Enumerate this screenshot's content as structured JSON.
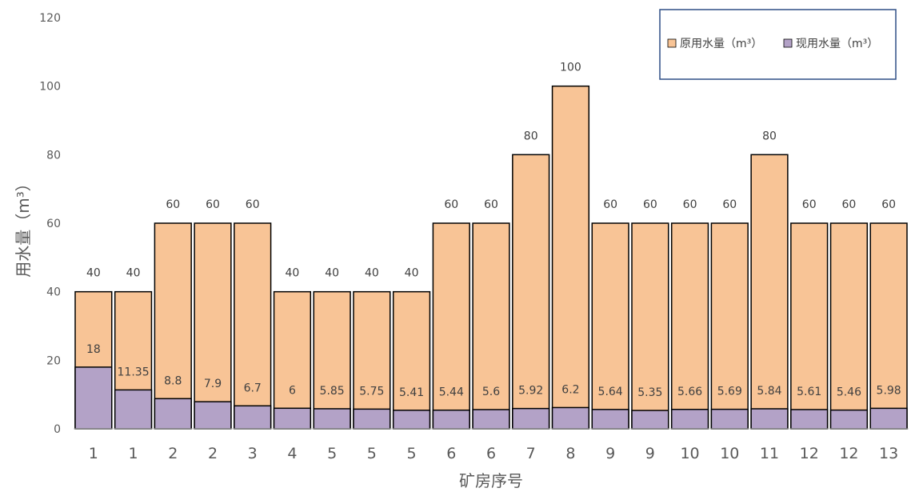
{
  "chart_data": {
    "type": "bar",
    "stacking": "overlap",
    "categories": [
      "1",
      "1",
      "2",
      "2",
      "3",
      "4",
      "5",
      "5",
      "5",
      "6",
      "6",
      "7",
      "8",
      "9",
      "9",
      "10",
      "10",
      "11",
      "12",
      "12",
      "13"
    ],
    "series": [
      {
        "name": "原用水量（m³）",
        "color": "#f8c496",
        "values": [
          40,
          40,
          60,
          60,
          60,
          40,
          40,
          40,
          40,
          60,
          60,
          80,
          100,
          60,
          60,
          60,
          60,
          80,
          60,
          60,
          60
        ]
      },
      {
        "name": "现用水量（m³）",
        "color": "#b3a2c7",
        "values": [
          18,
          11.35,
          8.8,
          7.9,
          6.7,
          6,
          5.85,
          5.75,
          5.41,
          5.44,
          5.6,
          5.92,
          6.2,
          5.64,
          5.35,
          5.66,
          5.69,
          5.84,
          5.61,
          5.46,
          5.98
        ]
      }
    ],
    "series_labels": [
      [
        "40",
        "40",
        "60",
        "60",
        "60",
        "40",
        "40",
        "40",
        "40",
        "60",
        "60",
        "80",
        "100",
        "60",
        "60",
        "60",
        "60",
        "80",
        "60",
        "60",
        "60"
      ],
      [
        "18",
        "11.35",
        "8.8",
        "7.9",
        "6.7",
        "6",
        "5.85",
        "5.75",
        "5.41",
        "5.44",
        "5.6",
        "5.92",
        "6.2",
        "5.64",
        "5.35",
        "5.66",
        "5.69",
        "5.84",
        "5.61",
        "5.46",
        "5.98"
      ]
    ],
    "yticks": [
      "0",
      "20",
      "40",
      "60",
      "80",
      "100",
      "120"
    ],
    "ylim": [
      0,
      120
    ],
    "xlabel": "矿房序号",
    "ylabel": "用水量（m³）",
    "legend_position": "top-right",
    "grid": false
  }
}
